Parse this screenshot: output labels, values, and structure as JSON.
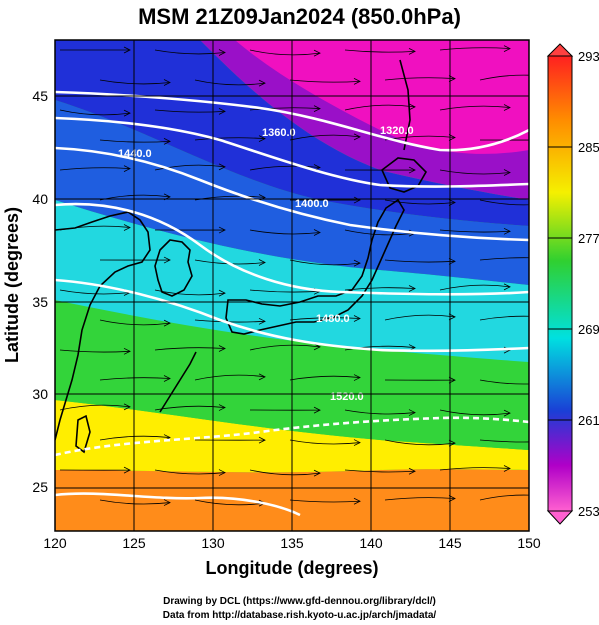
{
  "title": "MSM 21Z09Jan2024 (850.0hPa)",
  "x_axis": {
    "label": "Longitude (degrees)",
    "ticks": [
      "120",
      "125",
      "130",
      "135",
      "140",
      "145",
      "150"
    ],
    "range": [
      120,
      150
    ]
  },
  "y_axis": {
    "label": "Latitude  (degrees)",
    "ticks": [
      "25",
      "30",
      "35",
      "40",
      "45"
    ],
    "range": [
      22.4,
      47.6
    ]
  },
  "colorbar": {
    "labels": [
      "293",
      "285",
      "277",
      "269",
      "261",
      "253"
    ],
    "range": [
      253,
      293
    ],
    "colors": [
      "#ff3030",
      "#ff8c00",
      "#f5e600",
      "#33cc33",
      "#00dddd",
      "#1a3fd6",
      "#c000c0",
      "#ff50c8"
    ]
  },
  "contours": [
    {
      "label": "1320.0"
    },
    {
      "label": "1360.0"
    },
    {
      "label": "1400.0"
    },
    {
      "label": "1440.0"
    },
    {
      "label": "1480.0"
    },
    {
      "label": "1520.0"
    }
  ],
  "field_colors": {
    "warm": "#ff8c1a",
    "mild": "#ffee00",
    "green": "#33d43a",
    "cyan": "#22d8e0",
    "blue": "#1f5ee0",
    "deep_blue": "#2030d8",
    "purple": "#9a10c8",
    "magenta": "#f010c0"
  },
  "credits": [
    "Drawing by DCL (https://www.gfd-dennou.org/library/dcl/)",
    "Data from http://database.rish.kyoto-u.ac.jp/arch/jmadata/"
  ]
}
